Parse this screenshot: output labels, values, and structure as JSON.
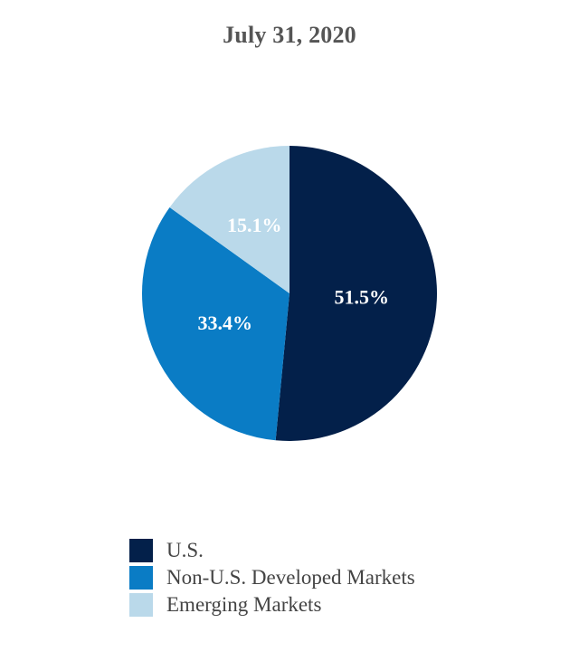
{
  "chart_data": {
    "type": "pie",
    "title": "July 31, 2020",
    "categories": [
      "U.S.",
      "Non-U.S. Developed Markets",
      "Emerging Markets"
    ],
    "values": [
      51.5,
      33.4,
      15.1
    ],
    "labels": [
      "51.5%",
      "33.4%",
      "15.1%"
    ],
    "colors": [
      "#03204a",
      "#0a7cc5",
      "#bad9ea"
    ],
    "start_angle": "12 o'clock",
    "direction": "clockwise",
    "legend_position": "bottom-left"
  }
}
